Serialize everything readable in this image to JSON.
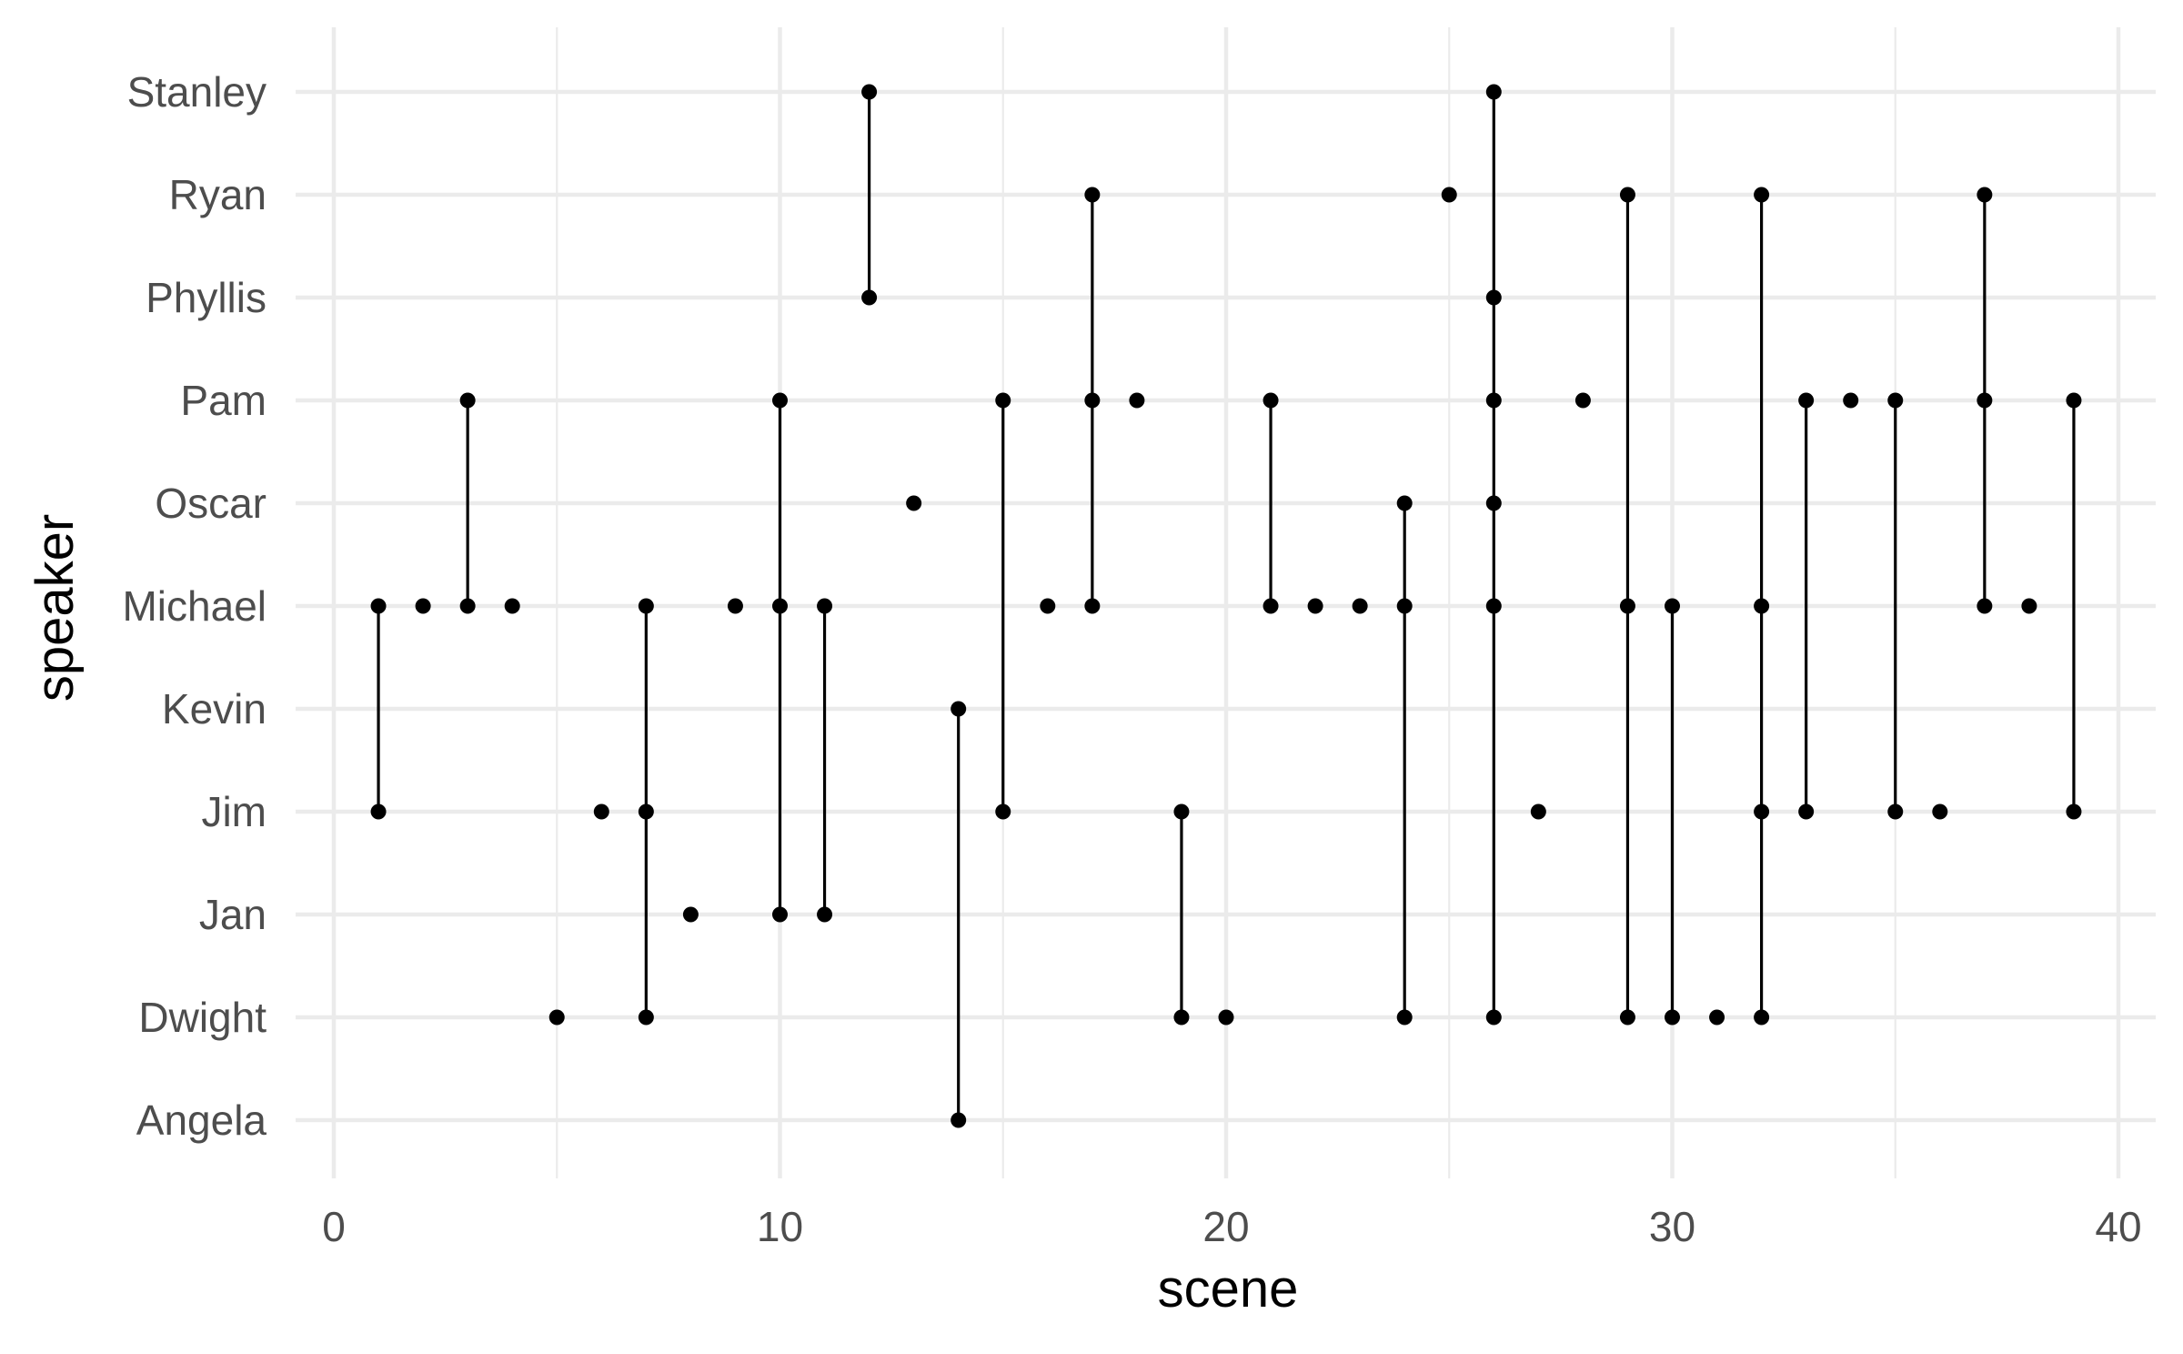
{
  "chart_data": {
    "type": "scatter",
    "title": "",
    "xlabel": "scene",
    "ylabel": "speaker",
    "xlim": [
      0,
      40
    ],
    "x_ticks": [
      0,
      10,
      20,
      30,
      40
    ],
    "speakers": [
      "Angela",
      "Dwight",
      "Jan",
      "Jim",
      "Kevin",
      "Michael",
      "Oscar",
      "Pam",
      "Phyllis",
      "Ryan",
      "Stanley"
    ],
    "grid": true,
    "legend": "none",
    "point_color": "#000000",
    "points": [
      {
        "scene": 1,
        "speaker": "Michael"
      },
      {
        "scene": 1,
        "speaker": "Jim"
      },
      {
        "scene": 2,
        "speaker": "Michael"
      },
      {
        "scene": 3,
        "speaker": "Pam"
      },
      {
        "scene": 3,
        "speaker": "Michael"
      },
      {
        "scene": 4,
        "speaker": "Michael"
      },
      {
        "scene": 5,
        "speaker": "Dwight"
      },
      {
        "scene": 6,
        "speaker": "Jim"
      },
      {
        "scene": 7,
        "speaker": "Michael"
      },
      {
        "scene": 7,
        "speaker": "Jim"
      },
      {
        "scene": 7,
        "speaker": "Dwight"
      },
      {
        "scene": 8,
        "speaker": "Jan"
      },
      {
        "scene": 9,
        "speaker": "Michael"
      },
      {
        "scene": 10,
        "speaker": "Pam"
      },
      {
        "scene": 10,
        "speaker": "Michael"
      },
      {
        "scene": 10,
        "speaker": "Jan"
      },
      {
        "scene": 11,
        "speaker": "Michael"
      },
      {
        "scene": 11,
        "speaker": "Jan"
      },
      {
        "scene": 12,
        "speaker": "Stanley"
      },
      {
        "scene": 12,
        "speaker": "Phyllis"
      },
      {
        "scene": 13,
        "speaker": "Oscar"
      },
      {
        "scene": 14,
        "speaker": "Kevin"
      },
      {
        "scene": 14,
        "speaker": "Angela"
      },
      {
        "scene": 15,
        "speaker": "Pam"
      },
      {
        "scene": 15,
        "speaker": "Jim"
      },
      {
        "scene": 16,
        "speaker": "Michael"
      },
      {
        "scene": 17,
        "speaker": "Ryan"
      },
      {
        "scene": 17,
        "speaker": "Pam"
      },
      {
        "scene": 17,
        "speaker": "Michael"
      },
      {
        "scene": 18,
        "speaker": "Pam"
      },
      {
        "scene": 19,
        "speaker": "Jim"
      },
      {
        "scene": 19,
        "speaker": "Dwight"
      },
      {
        "scene": 20,
        "speaker": "Dwight"
      },
      {
        "scene": 21,
        "speaker": "Pam"
      },
      {
        "scene": 21,
        "speaker": "Michael"
      },
      {
        "scene": 22,
        "speaker": "Michael"
      },
      {
        "scene": 23,
        "speaker": "Michael"
      },
      {
        "scene": 24,
        "speaker": "Oscar"
      },
      {
        "scene": 24,
        "speaker": "Michael"
      },
      {
        "scene": 24,
        "speaker": "Dwight"
      },
      {
        "scene": 25,
        "speaker": "Ryan"
      },
      {
        "scene": 26,
        "speaker": "Stanley"
      },
      {
        "scene": 26,
        "speaker": "Phyllis"
      },
      {
        "scene": 26,
        "speaker": "Pam"
      },
      {
        "scene": 26,
        "speaker": "Oscar"
      },
      {
        "scene": 26,
        "speaker": "Michael"
      },
      {
        "scene": 26,
        "speaker": "Dwight"
      },
      {
        "scene": 27,
        "speaker": "Jim"
      },
      {
        "scene": 28,
        "speaker": "Pam"
      },
      {
        "scene": 29,
        "speaker": "Ryan"
      },
      {
        "scene": 29,
        "speaker": "Michael"
      },
      {
        "scene": 29,
        "speaker": "Dwight"
      },
      {
        "scene": 30,
        "speaker": "Michael"
      },
      {
        "scene": 30,
        "speaker": "Dwight"
      },
      {
        "scene": 31,
        "speaker": "Dwight"
      },
      {
        "scene": 32,
        "speaker": "Ryan"
      },
      {
        "scene": 32,
        "speaker": "Michael"
      },
      {
        "scene": 32,
        "speaker": "Jim"
      },
      {
        "scene": 32,
        "speaker": "Dwight"
      },
      {
        "scene": 33,
        "speaker": "Pam"
      },
      {
        "scene": 33,
        "speaker": "Jim"
      },
      {
        "scene": 34,
        "speaker": "Pam"
      },
      {
        "scene": 35,
        "speaker": "Pam"
      },
      {
        "scene": 35,
        "speaker": "Jim"
      },
      {
        "scene": 36,
        "speaker": "Jim"
      },
      {
        "scene": 37,
        "speaker": "Ryan"
      },
      {
        "scene": 37,
        "speaker": "Pam"
      },
      {
        "scene": 37,
        "speaker": "Michael"
      },
      {
        "scene": 38,
        "speaker": "Michael"
      },
      {
        "scene": 39,
        "speaker": "Pam"
      },
      {
        "scene": 39,
        "speaker": "Jim"
      }
    ]
  }
}
